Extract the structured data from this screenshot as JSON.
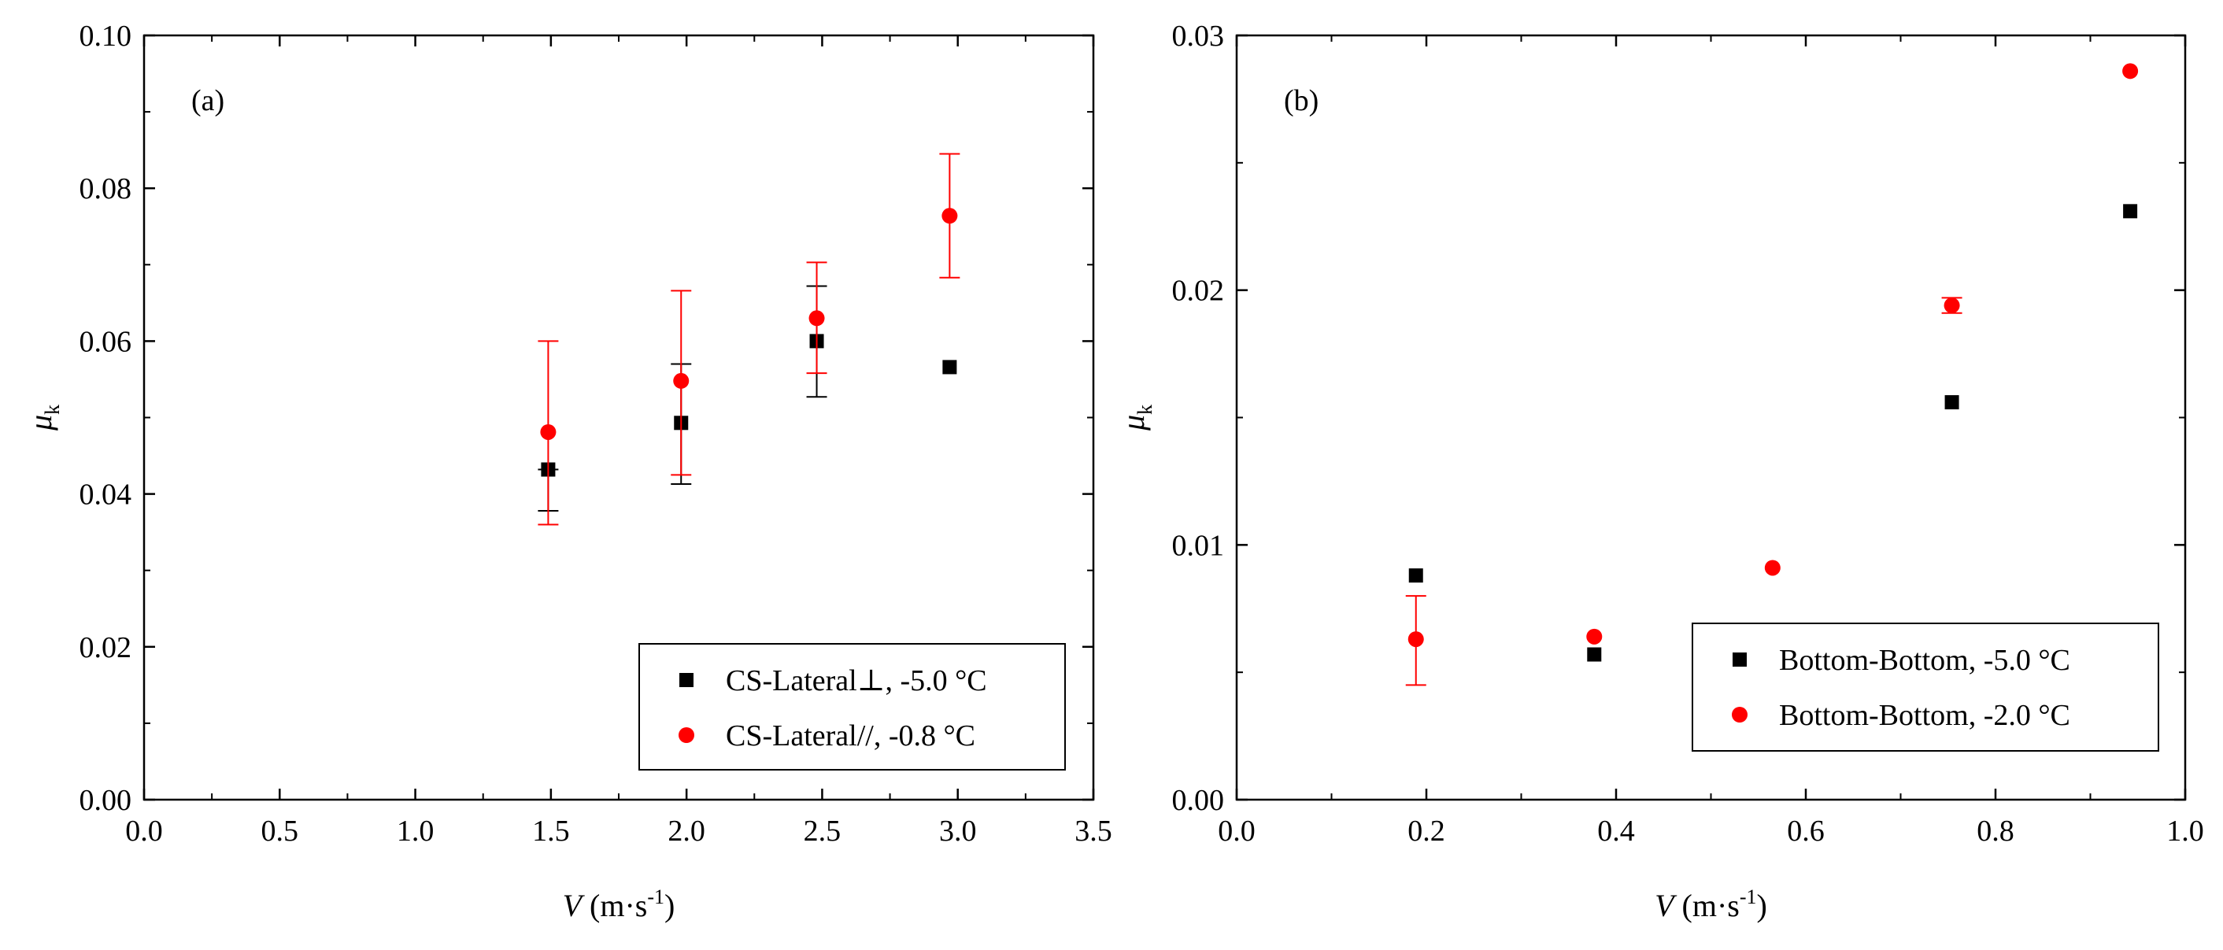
{
  "chart_data": [
    {
      "panel": "(a)",
      "type": "scatter",
      "xlabel_italic": "V",
      "xlabel_unit": "(m·s",
      "xlabel_exp": "-1",
      "xlabel_close": ")",
      "ylabel_sym": "μ",
      "ylabel_sub": "k",
      "xlim": [
        0.0,
        3.5
      ],
      "ylim": [
        0.0,
        0.1
      ],
      "xticks": [
        0.0,
        0.5,
        1.0,
        1.5,
        2.0,
        2.5,
        3.0,
        3.5
      ],
      "xtick_labels": [
        "0.0",
        "0.5",
        "1.0",
        "1.5",
        "2.0",
        "2.5",
        "3.0",
        "3.5"
      ],
      "yticks": [
        0.0,
        0.02,
        0.04,
        0.06,
        0.08,
        0.1
      ],
      "ytick_labels": [
        "0.00",
        "0.02",
        "0.04",
        "0.06",
        "0.08",
        "0.10"
      ],
      "legend_position": "bottom-right",
      "series": [
        {
          "name": "CS-Lateral⊥, -5.0 °C",
          "marker": "square",
          "color": "#000000",
          "points": [
            {
              "x": 1.49,
              "y": 0.0432,
              "lo": 0.0378,
              "hi": 0.0432
            },
            {
              "x": 1.98,
              "y": 0.0493,
              "lo": 0.0413,
              "hi": 0.057
            },
            {
              "x": 2.48,
              "y": 0.06,
              "lo": 0.0527,
              "hi": 0.0672
            },
            {
              "x": 2.97,
              "y": 0.0566,
              "lo": 0.0566,
              "hi": 0.0566
            }
          ]
        },
        {
          "name": "CS-Lateral//, -0.8 °C",
          "marker": "circle",
          "color": "#ff0000",
          "points": [
            {
              "x": 1.49,
              "y": 0.0481,
              "lo": 0.036,
              "hi": 0.06
            },
            {
              "x": 1.98,
              "y": 0.0548,
              "lo": 0.0425,
              "hi": 0.0666
            },
            {
              "x": 2.48,
              "y": 0.063,
              "lo": 0.0558,
              "hi": 0.0703
            },
            {
              "x": 2.97,
              "y": 0.0764,
              "lo": 0.0683,
              "hi": 0.0845
            }
          ]
        }
      ]
    },
    {
      "panel": "(b)",
      "type": "scatter",
      "xlabel_italic": "V",
      "xlabel_unit": "(m·s",
      "xlabel_exp": "-1",
      "xlabel_close": ")",
      "ylabel_sym": "μ",
      "ylabel_sub": "k",
      "xlim": [
        0.0,
        1.0
      ],
      "ylim": [
        0.0,
        0.03
      ],
      "xticks": [
        0.0,
        0.2,
        0.4,
        0.6,
        0.8,
        1.0
      ],
      "xtick_labels": [
        "0.0",
        "0.2",
        "0.4",
        "0.6",
        "0.8",
        "1.0"
      ],
      "yticks": [
        0.0,
        0.01,
        0.02,
        0.03
      ],
      "ytick_labels": [
        "0.00",
        "0.01",
        "0.02",
        "0.03"
      ],
      "legend_position": "bottom-right",
      "series": [
        {
          "name": "Bottom-Bottom, -5.0 °C",
          "marker": "square",
          "color": "#000000",
          "points": [
            {
              "x": 0.189,
              "y": 0.0088,
              "lo": 0.0088,
              "hi": 0.0088
            },
            {
              "x": 0.377,
              "y": 0.0057,
              "lo": 0.0057,
              "hi": 0.0057
            },
            {
              "x": 0.754,
              "y": 0.0156,
              "lo": 0.0156,
              "hi": 0.0156
            },
            {
              "x": 0.942,
              "y": 0.0231,
              "lo": 0.0231,
              "hi": 0.0231
            }
          ]
        },
        {
          "name": "Bottom-Bottom, -2.0 °C",
          "marker": "circle",
          "color": "#ff0000",
          "points": [
            {
              "x": 0.189,
              "y": 0.0063,
              "lo": 0.0045,
              "hi": 0.008
            },
            {
              "x": 0.377,
              "y": 0.0064,
              "lo": 0.0064,
              "hi": 0.0064
            },
            {
              "x": 0.565,
              "y": 0.0091,
              "lo": 0.0091,
              "hi": 0.0091
            },
            {
              "x": 0.754,
              "y": 0.0194,
              "lo": 0.0191,
              "hi": 0.0197
            },
            {
              "x": 0.942,
              "y": 0.0286,
              "lo": 0.0286,
              "hi": 0.0286
            }
          ]
        }
      ]
    }
  ]
}
